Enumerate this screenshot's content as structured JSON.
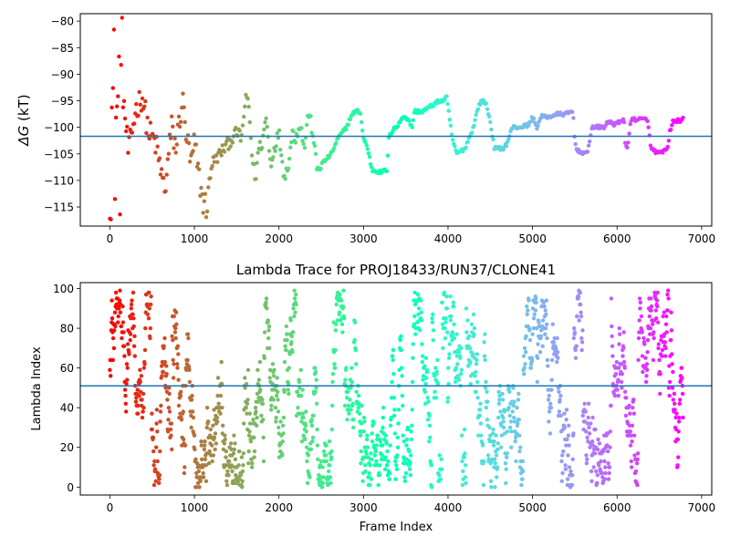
{
  "chart_data": [
    {
      "type": "scatter",
      "title": "",
      "xlabel": "",
      "ylabel": "ΔG (kT)",
      "ylabel_symbol": "ΔG",
      "ylabel_unit": " (kT)",
      "xlim": [
        -350,
        7120
      ],
      "ylim": [
        -118.6,
        -78.6
      ],
      "x_ticks": [
        0,
        1000,
        2000,
        3000,
        4000,
        5000,
        6000,
        7000
      ],
      "x_tick_labels": [
        "0",
        "1000",
        "2000",
        "3000",
        "4000",
        "5000",
        "6000",
        "7000"
      ],
      "y_ticks": [
        -80,
        -85,
        -90,
        -95,
        -100,
        -105,
        -110,
        -115
      ],
      "y_tick_labels": [
        "−80",
        "−85",
        "−90",
        "−95",
        "−100",
        "−105",
        "−110",
        "−115"
      ],
      "hline": {
        "y": -101.7,
        "color": "#1f77b4"
      },
      "colormap": "rainbow (red at frame 0 → violet at frame 6780)",
      "grid": false,
      "n_frames": 6780,
      "trace_anchors": [
        [
          150,
          -93
        ],
        [
          220,
          -105
        ],
        [
          300,
          -97
        ],
        [
          380,
          -94
        ],
        [
          460,
          -101
        ],
        [
          540,
          -103
        ],
        [
          600,
          -108
        ],
        [
          650,
          -112
        ],
        [
          690,
          -106
        ],
        [
          730,
          -100
        ],
        [
          780,
          -104
        ],
        [
          820,
          -99
        ],
        [
          860,
          -95
        ],
        [
          900,
          -101
        ],
        [
          960,
          -107
        ],
        [
          1000,
          -103
        ],
        [
          1050,
          -109
        ],
        [
          1100,
          -114
        ],
        [
          1150,
          -115
        ],
        [
          1200,
          -107
        ],
        [
          1300,
          -105
        ],
        [
          1400,
          -103
        ],
        [
          1500,
          -101
        ],
        [
          1560,
          -102
        ],
        [
          1600,
          -95
        ],
        [
          1640,
          -95
        ],
        [
          1680,
          -105
        ],
        [
          1720,
          -110
        ],
        [
          1760,
          -104
        ],
        [
          1800,
          -103
        ],
        [
          1850,
          -98
        ],
        [
          1900,
          -107
        ],
        [
          1960,
          -103
        ],
        [
          2000,
          -101
        ],
        [
          2050,
          -108
        ],
        [
          2080,
          -109
        ],
        [
          2120,
          -106
        ],
        [
          2160,
          -101
        ],
        [
          2200,
          -102
        ],
        [
          2250,
          -99
        ],
        [
          2300,
          -104
        ],
        [
          2350,
          -97
        ],
        [
          2400,
          -101
        ],
        [
          2450,
          -108
        ],
        [
          2500,
          -107
        ],
        [
          2560,
          -106
        ],
        [
          2620,
          -105
        ],
        [
          2700,
          -102
        ],
        [
          2800,
          -100
        ],
        [
          2850,
          -98
        ],
        [
          2900,
          -97
        ],
        [
          2960,
          -97
        ],
        [
          3000,
          -102
        ],
        [
          3050,
          -104
        ],
        [
          3100,
          -108
        ],
        [
          3200,
          -108.5
        ],
        [
          3280,
          -108
        ],
        [
          3300,
          -102
        ],
        [
          3360,
          -100
        ],
        [
          3400,
          -100
        ],
        [
          3460,
          -98
        ],
        [
          3500,
          -98
        ],
        [
          3580,
          -100
        ],
        [
          3600,
          -97
        ],
        [
          3700,
          -97
        ],
        [
          3800,
          -96
        ],
        [
          3900,
          -95
        ],
        [
          3950,
          -95
        ],
        [
          3980,
          -94
        ],
        [
          4050,
          -102
        ],
        [
          4100,
          -105
        ],
        [
          4200,
          -104
        ],
        [
          4300,
          -100
        ],
        [
          4360,
          -96
        ],
        [
          4400,
          -95
        ],
        [
          4450,
          -95.5
        ],
        [
          4500,
          -99
        ],
        [
          4550,
          -104
        ],
        [
          4650,
          -104
        ],
        [
          4700,
          -103
        ],
        [
          4760,
          -100
        ],
        [
          4850,
          -100
        ],
        [
          4960,
          -99.5
        ],
        [
          5000,
          -98
        ],
        [
          5050,
          -100
        ],
        [
          5080,
          -99
        ],
        [
          5100,
          -98
        ],
        [
          5200,
          -98
        ],
        [
          5300,
          -97.5
        ],
        [
          5400,
          -97.5
        ],
        [
          5480,
          -97
        ],
        [
          5500,
          -103
        ],
        [
          5540,
          -104.5
        ],
        [
          5650,
          -105
        ],
        [
          5700,
          -100
        ],
        [
          5760,
          -100
        ],
        [
          5840,
          -100
        ],
        [
          5900,
          -99
        ],
        [
          5940,
          -99
        ],
        [
          5960,
          -99.5
        ],
        [
          6040,
          -99
        ],
        [
          6080,
          -98
        ],
        [
          6100,
          -104
        ],
        [
          6130,
          -103.5
        ],
        [
          6160,
          -98.5
        ],
        [
          6200,
          -98.5
        ],
        [
          6300,
          -98.5
        ],
        [
          6360,
          -98.5
        ],
        [
          6400,
          -104
        ],
        [
          6500,
          -105
        ],
        [
          6600,
          -104
        ],
        [
          6620,
          -101
        ],
        [
          6660,
          -99
        ],
        [
          6780,
          -98.5
        ]
      ]
    },
    {
      "type": "scatter",
      "title": "Lambda Trace for PROJ18433/RUN37/CLONE41",
      "xlabel": "Frame Index",
      "ylabel": "Lambda Index",
      "xlim": [
        -350,
        7120
      ],
      "ylim": [
        -4,
        103
      ],
      "x_ticks": [
        0,
        1000,
        2000,
        3000,
        4000,
        5000,
        6000,
        7000
      ],
      "x_tick_labels": [
        "0",
        "1000",
        "2000",
        "3000",
        "4000",
        "5000",
        "6000",
        "7000"
      ],
      "y_ticks": [
        0,
        20,
        40,
        60,
        80,
        100
      ],
      "y_tick_labels": [
        "0",
        "20",
        "40",
        "60",
        "80",
        "100"
      ],
      "hline": {
        "y": 51,
        "color": "#1f77b4"
      },
      "colormap": "rainbow (red at frame 0 → violet at frame 6780)",
      "grid": false,
      "n_frames": 6780,
      "lambda_range": [
        0,
        99
      ]
    }
  ]
}
